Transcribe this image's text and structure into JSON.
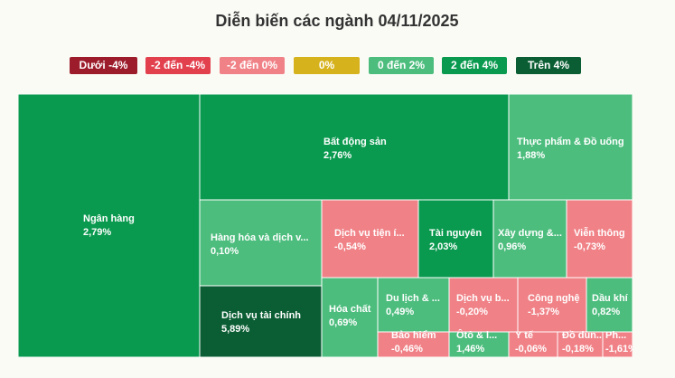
{
  "chart_data": {
    "type": "treemap",
    "title": "Diễn biến các ngành 04/11/2025",
    "legend": [
      {
        "label": "Dưới -4%",
        "color": "#9c1c2b"
      },
      {
        "label": "-2 đến -4%",
        "color": "#e3404e"
      },
      {
        "label": "-2 đến 0%",
        "color": "#f08287"
      },
      {
        "label": "0%",
        "color": "#d6b21d"
      },
      {
        "label": "0 đến 2%",
        "color": "#4cbd7d"
      },
      {
        "label": "2 đến 4%",
        "color": "#0a9a4f"
      },
      {
        "label": "Trên 4%",
        "color": "#0b5e34"
      }
    ],
    "tiles": [
      {
        "name": "Ngân hàng",
        "value": 2.79,
        "value_label": "2,79%",
        "color": "#0a9a4f"
      },
      {
        "name": "Bất động sản",
        "value": 2.76,
        "value_label": "2,76%",
        "color": "#0a9a4f"
      },
      {
        "name": "Thực phẩm & Đồ uống",
        "value": 1.88,
        "value_label": "1,88%",
        "color": "#4cbd7d"
      },
      {
        "name": "Hàng hóa và dịch v...",
        "value": 0.1,
        "value_label": "0,10%",
        "color": "#4cbd7d"
      },
      {
        "name": "Dịch vụ tài chính",
        "value": 5.89,
        "value_label": "5,89%",
        "color": "#0b5e34"
      },
      {
        "name": "Dịch vụ tiện í...",
        "value": -0.54,
        "value_label": "-0,54%",
        "color": "#f08287"
      },
      {
        "name": "Tài nguyên",
        "value": 2.03,
        "value_label": "2,03%",
        "color": "#0a9a4f"
      },
      {
        "name": "Xây dựng &...",
        "value": 0.96,
        "value_label": "0,96%",
        "color": "#4cbd7d"
      },
      {
        "name": "Viễn thông",
        "value": -0.73,
        "value_label": "-0,73%",
        "color": "#f08287"
      },
      {
        "name": "Hóa chất",
        "value": 0.69,
        "value_label": "0,69%",
        "color": "#4cbd7d"
      },
      {
        "name": "Du lịch & ...",
        "value": 0.49,
        "value_label": "0,49%",
        "color": "#4cbd7d"
      },
      {
        "name": "Dịch vụ b...",
        "value": -0.2,
        "value_label": "-0,20%",
        "color": "#f08287"
      },
      {
        "name": "Công nghệ",
        "value": -1.37,
        "value_label": "-1,37%",
        "color": "#f08287"
      },
      {
        "name": "Dầu khí",
        "value": 0.82,
        "value_label": "0,82%",
        "color": "#4cbd7d"
      },
      {
        "name": "Bảo hiểm",
        "value": -0.46,
        "value_label": "-0,46%",
        "color": "#f08287"
      },
      {
        "name": "Ôtô & l...",
        "value": 1.46,
        "value_label": "1,46%",
        "color": "#4cbd7d"
      },
      {
        "name": "Y tế",
        "value": -0.06,
        "value_label": "-0,06%",
        "color": "#f08287"
      },
      {
        "name": "Đồ dùn...",
        "value": -0.18,
        "value_label": "-0,18%",
        "color": "#f08287"
      },
      {
        "name": "Ph...",
        "value": -1.61,
        "value_label": "-1,61%",
        "color": "#f08287"
      }
    ]
  }
}
